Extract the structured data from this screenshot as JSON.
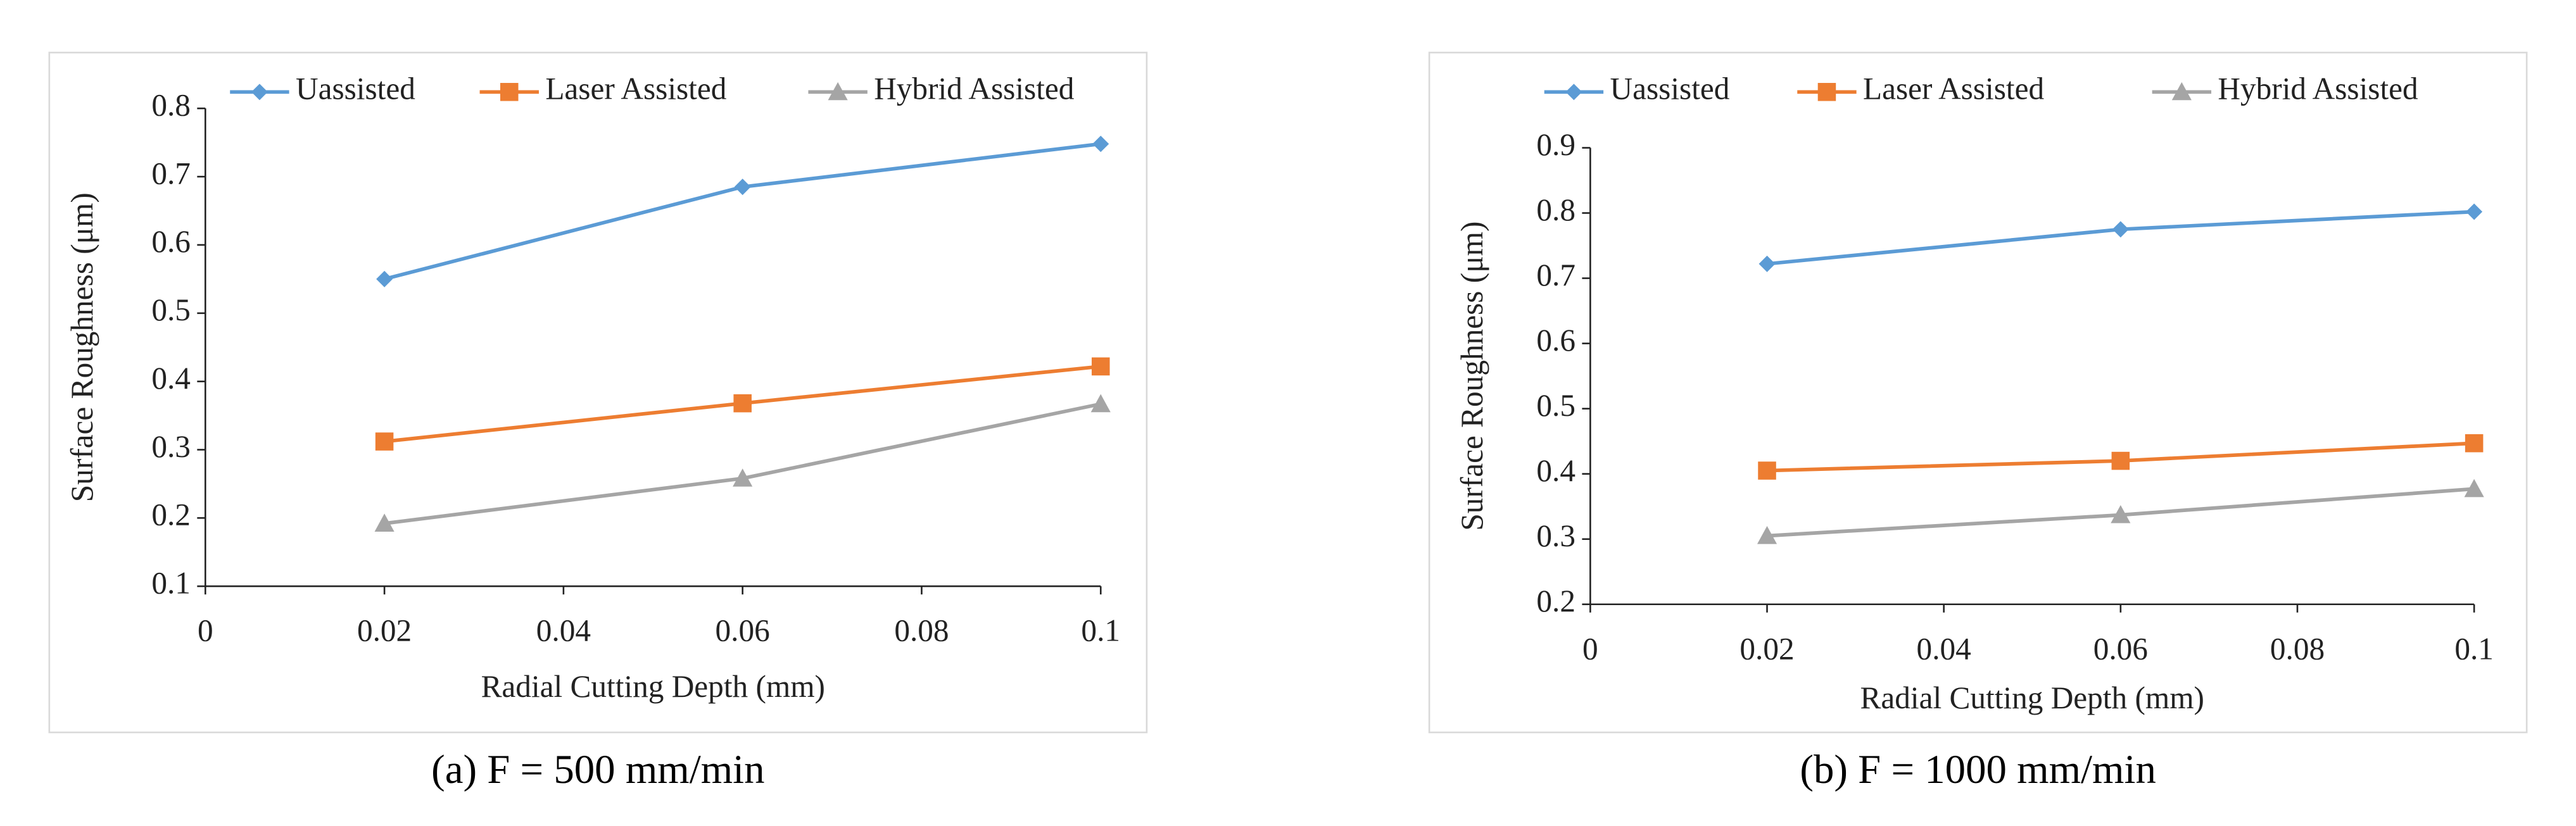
{
  "chart_data": [
    {
      "type": "line",
      "caption": "(a) F = 500 mm/min",
      "xlabel": "Radial Cutting Depth (mm)",
      "ylabel": "Surface Roughness (μm)",
      "x": [
        0.02,
        0.06,
        0.1
      ],
      "xlim": [
        0,
        0.1
      ],
      "xticks": [
        0,
        0.02,
        0.04,
        0.06,
        0.08,
        0.1
      ],
      "ylim": [
        0.1,
        0.8
      ],
      "yticks": [
        0.1,
        0.2,
        0.3,
        0.4,
        0.5,
        0.6,
        0.7,
        0.8
      ],
      "grid": false,
      "legend": "top",
      "series": [
        {
          "name": "Uassisted",
          "color": "#5b9bd5",
          "marker": "diamond",
          "values": [
            0.55,
            0.685,
            0.748
          ]
        },
        {
          "name": "Laser Assisted",
          "color": "#ed7d31",
          "marker": "square",
          "values": [
            0.312,
            0.368,
            0.422
          ]
        },
        {
          "name": "Hybrid Assisted",
          "color": "#a5a5a5",
          "marker": "triangle",
          "values": [
            0.192,
            0.258,
            0.367
          ]
        }
      ]
    },
    {
      "type": "line",
      "caption": "(b) F = 1000 mm/min",
      "xlabel": "Radial Cutting Depth (mm)",
      "ylabel": "Surface Roughness (μm)",
      "x": [
        0.02,
        0.06,
        0.1
      ],
      "xlim": [
        0,
        0.1
      ],
      "xticks": [
        0,
        0.02,
        0.04,
        0.06,
        0.08,
        0.1
      ],
      "ylim": [
        0.2,
        0.9
      ],
      "yticks": [
        0.2,
        0.3,
        0.4,
        0.5,
        0.6,
        0.7,
        0.8,
        0.9
      ],
      "grid": false,
      "legend": "top",
      "series": [
        {
          "name": "Uassisted",
          "color": "#5b9bd5",
          "marker": "diamond",
          "values": [
            0.722,
            0.775,
            0.802
          ]
        },
        {
          "name": "Laser Assisted",
          "color": "#ed7d31",
          "marker": "square",
          "values": [
            0.405,
            0.42,
            0.447
          ]
        },
        {
          "name": "Hybrid Assisted",
          "color": "#a5a5a5",
          "marker": "triangle",
          "values": [
            0.305,
            0.337,
            0.377
          ]
        }
      ]
    }
  ]
}
